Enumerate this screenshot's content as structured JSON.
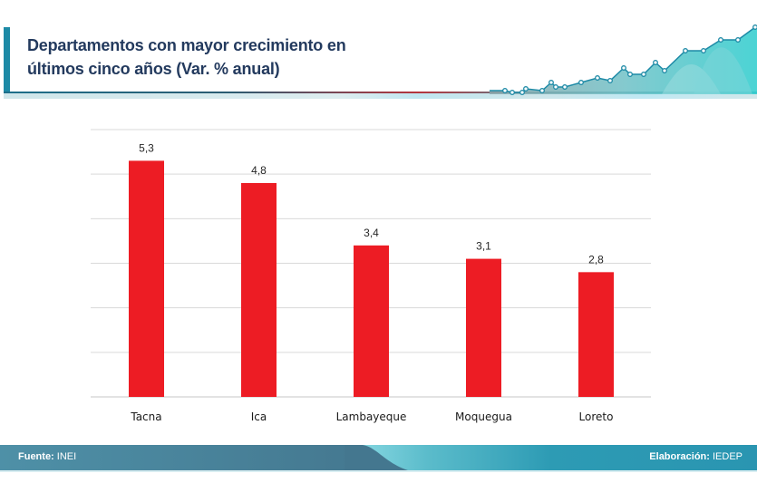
{
  "header": {
    "title_line1": "Departamentos con mayor crecimiento en",
    "title_line2": "últimos cinco años (Var. % anual)",
    "decoration": "rising-line-area-graphic"
  },
  "chart_data": {
    "type": "bar",
    "title": "Departamentos con mayor crecimiento en últimos cinco años (Var. % anual)",
    "categories": [
      "Tacna",
      "Ica",
      "Lambayeque",
      "Moquegua",
      "Loreto"
    ],
    "values": [
      5.3,
      4.8,
      3.4,
      3.1,
      2.8
    ],
    "data_labels": [
      "5,3",
      "4,8",
      "3,4",
      "3,1",
      "2,8"
    ],
    "xlabel": "",
    "ylabel": "",
    "ylim": [
      0,
      6
    ],
    "yticks": [
      0,
      1,
      2,
      3,
      4,
      5,
      6
    ],
    "ytick_labels_visible": false,
    "grid": true,
    "legend": "none",
    "bar_color": "#ed1c24",
    "grid_color": "#d9d9d9"
  },
  "footer": {
    "source_label": "Fuente:",
    "source_value": "INEI",
    "credit_label": "Elaboración:",
    "credit_value": "IEDEP"
  },
  "colors": {
    "title": "#233a5e",
    "accent": "#1d8aa6",
    "bar": "#ed1c24"
  }
}
